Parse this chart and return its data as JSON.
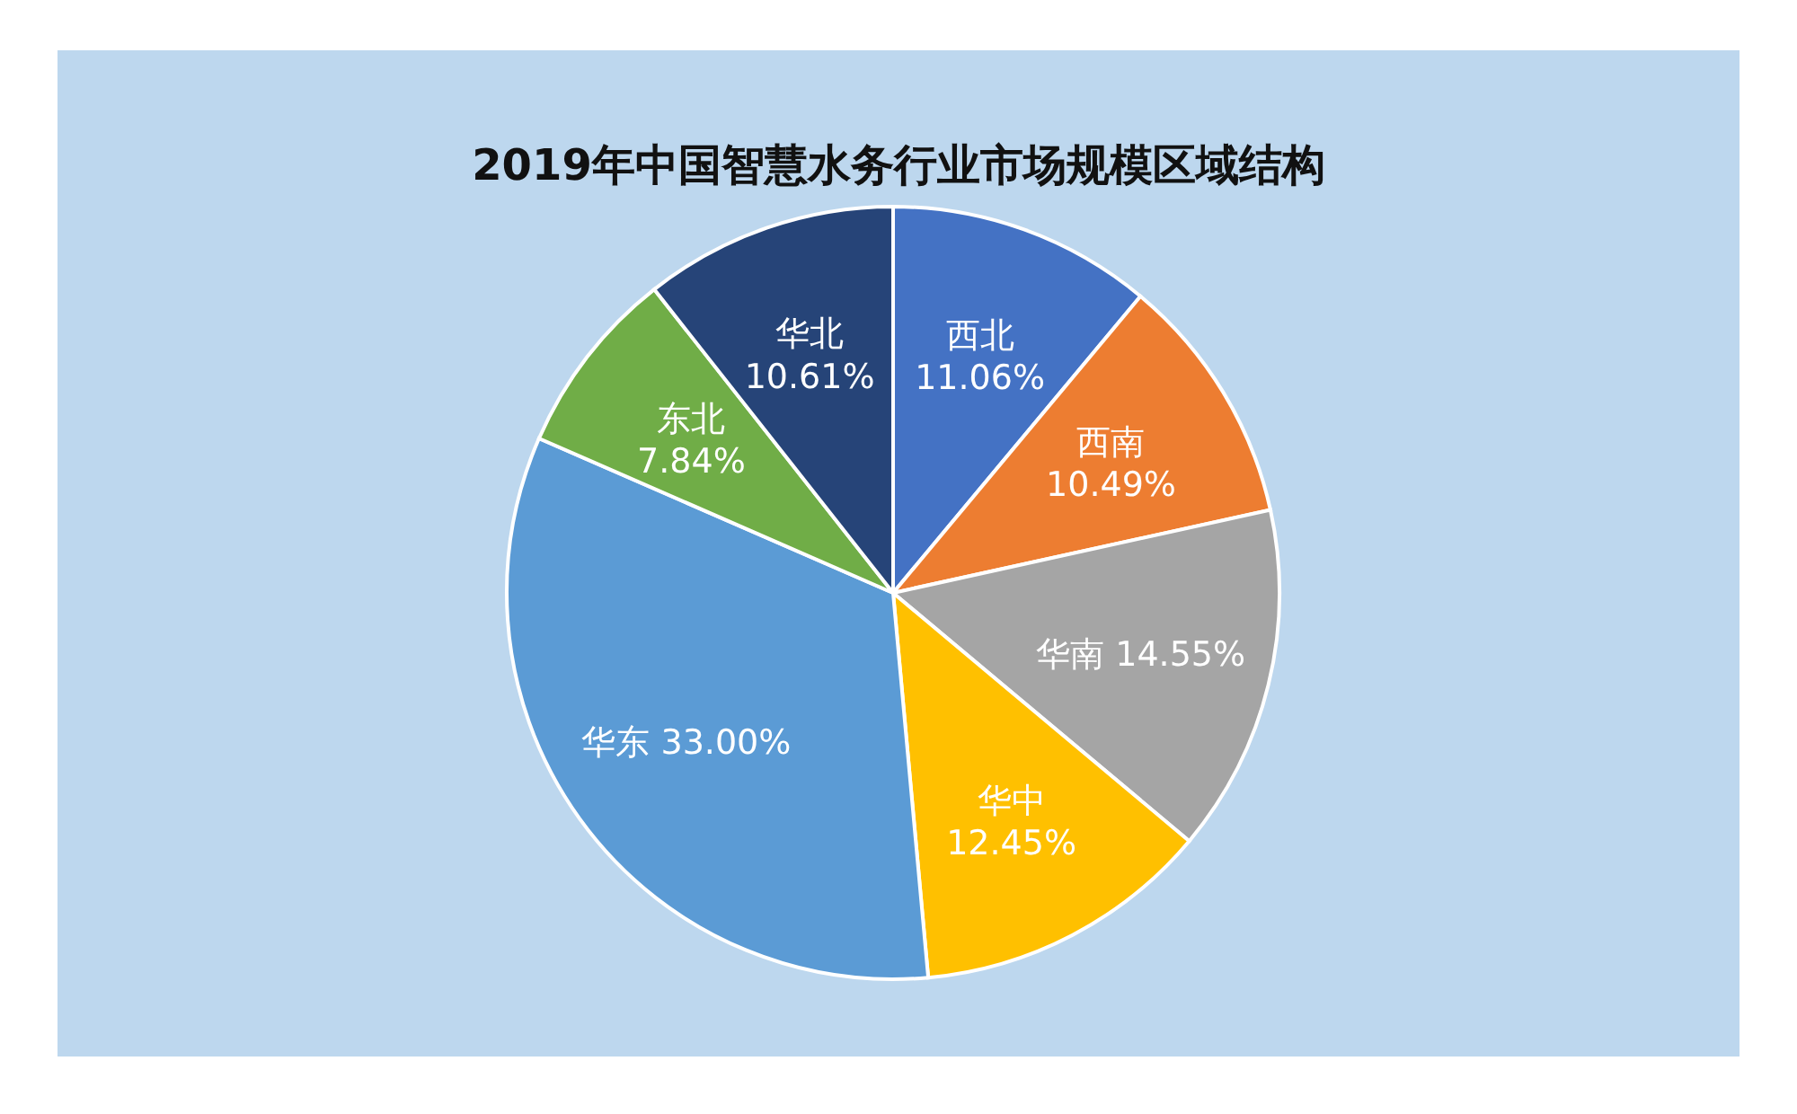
{
  "chart_data": {
    "type": "pie",
    "title": "2019年中国智慧水务行业市场规模区域结构",
    "categories": [
      "西北",
      "西南",
      "华南",
      "华中",
      "华东",
      "东北",
      "华北"
    ],
    "values": [
      11.06,
      10.49,
      14.55,
      12.45,
      33.0,
      7.84,
      10.61
    ],
    "value_labels": [
      "11.06%",
      "10.49%",
      "14.55%",
      "12.45%",
      "33.00%",
      "7.84%",
      "10.61%"
    ],
    "colors": [
      "#4472c4",
      "#ed7d31",
      "#a5a5a5",
      "#ffc000",
      "#5b9bd5",
      "#70ad47",
      "#264478"
    ],
    "legend": false
  }
}
